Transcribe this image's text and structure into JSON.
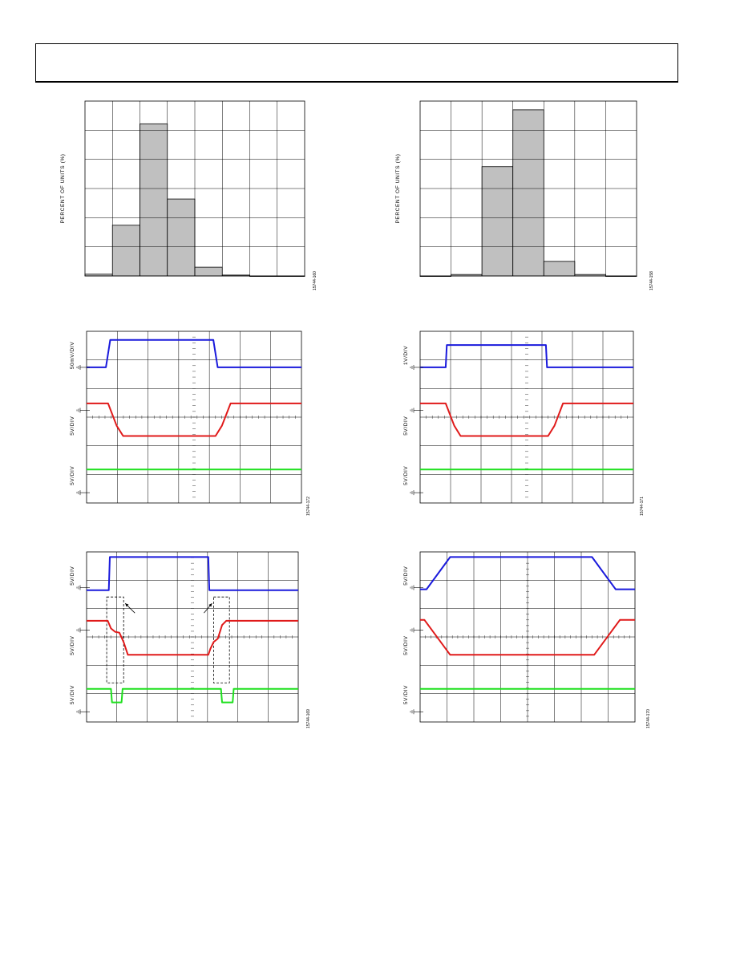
{
  "figures": [
    {
      "id": "hist-left",
      "ylabel": "PERCENT OF UNITS (%)",
      "fig_id": "15744-160",
      "chart_data": {
        "type": "bar",
        "bins": 8,
        "rows": 6,
        "values": [
          0.1,
          2.9,
          8.7,
          4.4,
          0.5,
          0.05,
          0,
          0
        ],
        "ymax": 10
      }
    },
    {
      "id": "hist-right",
      "ylabel": "PERCENT OF UNITS (%)",
      "fig_id": "15744-158",
      "chart_data": {
        "type": "bar",
        "bins": 7,
        "rows": 6,
        "values": [
          0,
          0.05,
          3.75,
          5.7,
          0.5,
          0.05,
          0
        ],
        "ymax": 6
      }
    },
    {
      "id": "scope-1",
      "fig_id": "15744-172",
      "chart_data": {
        "type": "line",
        "cols": 7,
        "rows": 6,
        "channels": [
          {
            "label": "50mV/DIV",
            "color": "#1a1adc",
            "x": [
              0,
              0.09,
              0.11,
              0.59,
              0.61,
              1
            ],
            "y": [
              0.79,
              0.79,
              0.95,
              0.95,
              0.79,
              0.79
            ]
          },
          {
            "label": "5V/DIV",
            "color": "#e01a1a",
            "x": [
              0,
              0.1,
              0.14,
              0.17,
              0.6,
              0.63,
              0.67,
              1
            ],
            "y": [
              0.58,
              0.58,
              0.45,
              0.39,
              0.39,
              0.45,
              0.58,
              0.58
            ]
          },
          {
            "label": "5V/DIV",
            "color": "#1ee01e",
            "x": [
              0,
              1
            ],
            "y": [
              0.195,
              0.195
            ]
          }
        ]
      }
    },
    {
      "id": "scope-2",
      "fig_id": "15744-171",
      "chart_data": {
        "type": "line",
        "cols": 7,
        "rows": 6,
        "channels": [
          {
            "label": "1V/DIV",
            "color": "#1a1adc",
            "x": [
              0,
              0.12,
              0.125,
              0.59,
              0.595,
              1
            ],
            "y": [
              0.79,
              0.79,
              0.92,
              0.92,
              0.79,
              0.79
            ]
          },
          {
            "label": "5V/DIV",
            "color": "#e01a1a",
            "x": [
              0,
              0.12,
              0.16,
              0.19,
              0.6,
              0.63,
              0.67,
              1
            ],
            "y": [
              0.58,
              0.58,
              0.45,
              0.39,
              0.39,
              0.45,
              0.58,
              0.58
            ]
          },
          {
            "label": "5V/DIV",
            "color": "#1ee01e",
            "x": [
              0,
              1
            ],
            "y": [
              0.195,
              0.195
            ]
          }
        ]
      }
    },
    {
      "id": "scope-3",
      "fig_id": "15744-169",
      "chart_data": {
        "type": "line",
        "cols": 7,
        "rows": 6,
        "channels": [
          {
            "label": "5V/DIV",
            "color": "#1a1adc",
            "x": [
              0,
              0.105,
              0.11,
              0.575,
              0.58,
              1
            ],
            "y": [
              0.775,
              0.775,
              0.97,
              0.97,
              0.775,
              0.775
            ]
          },
          {
            "label": "5V/DIV",
            "color": "#e01a1a",
            "x": [
              0,
              0.1,
              0.115,
              0.135,
              0.155,
              0.175,
              0.195,
              0.575,
              0.585,
              0.6,
              0.62,
              0.64,
              0.66,
              1
            ],
            "y": [
              0.595,
              0.595,
              0.55,
              0.53,
              0.525,
              0.47,
              0.395,
              0.395,
              0.43,
              0.47,
              0.49,
              0.57,
              0.595,
              0.595
            ]
          },
          {
            "label": "5V/DIV",
            "color": "#1ee01e",
            "x": [
              0,
              0.115,
              0.12,
              0.165,
              0.17,
              0.635,
              0.64,
              0.69,
              0.695,
              1
            ],
            "y": [
              0.195,
              0.195,
              0.115,
              0.115,
              0.195,
              0.195,
              0.115,
              0.115,
              0.195,
              0.195
            ]
          }
        ],
        "annotations": [
          {
            "shape": "dashed-box",
            "x": [
              0.095,
              0.175
            ],
            "y": [
              0.23,
              0.735
            ]
          },
          {
            "shape": "dashed-box",
            "x": [
              0.6,
              0.675
            ],
            "y": [
              0.23,
              0.735
            ]
          }
        ]
      }
    },
    {
      "id": "scope-4",
      "fig_id": "15744-170",
      "chart_data": {
        "type": "line",
        "cols": 8,
        "rows": 6,
        "channels": [
          {
            "label": "5V/DIV",
            "color": "#1a1adc",
            "x": [
              0,
              0.03,
              0.14,
              0.8,
              0.91,
              0.94,
              1
            ],
            "y": [
              0.78,
              0.78,
              0.97,
              0.97,
              0.78,
              0.78,
              0.78
            ]
          },
          {
            "label": "5V/DIV",
            "color": "#e01a1a",
            "x": [
              0,
              0.02,
              0.14,
              0.81,
              0.93,
              1
            ],
            "y": [
              0.6,
              0.6,
              0.395,
              0.395,
              0.6,
              0.6
            ]
          },
          {
            "label": "5V/DIV",
            "color": "#1ee01e",
            "x": [
              0,
              1
            ],
            "y": [
              0.195,
              0.195
            ]
          }
        ]
      }
    }
  ]
}
